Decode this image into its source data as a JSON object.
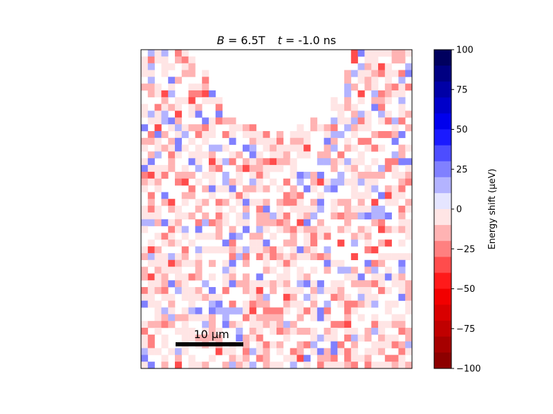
{
  "chart_data": {
    "type": "heatmap",
    "title_parts": {
      "b_symbol": "B",
      "b_value": " = 6.5T",
      "t_symbol": "t",
      "t_value": " = -1.0 ns"
    },
    "colorbar": {
      "label": "Energy shift (μeV)",
      "range": [
        -100,
        100
      ],
      "ticks": [
        100,
        75,
        50,
        25,
        0,
        -25,
        -50,
        -75,
        -100
      ],
      "colormap": "seismic",
      "levels": 20
    },
    "scalebar": {
      "label": "10 μm",
      "length_um": 10
    },
    "grid": {
      "cols": 40,
      "rows": 47,
      "seed": 7,
      "cutout": {
        "center_col": 20,
        "radius_cols": 10.8,
        "depth_rows": 12
      }
    },
    "colors": {
      "frame": "#000000",
      "scalebar": "#000000",
      "background": "#ffffff"
    }
  }
}
